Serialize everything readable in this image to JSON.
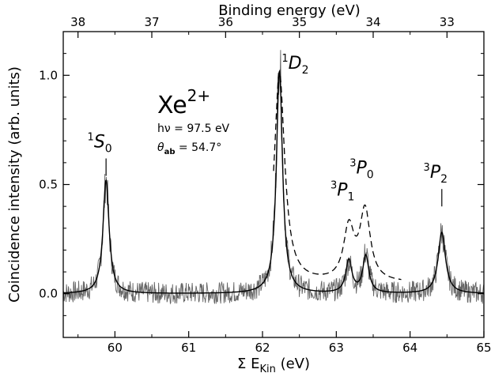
{
  "chart_data": {
    "type": "line",
    "xlabel": "Σ E",
    "xlabel_sub": "Kin",
    "xlabel_unit": " (eV)",
    "ylabel": "Coincidence intensity (arb. units)",
    "top_axis_label": "Binding energy (eV)",
    "xlim": [
      59.3,
      65.0
    ],
    "ylim": [
      -0.2,
      1.2
    ],
    "x_ticks": [
      "60",
      "61",
      "62",
      "63",
      "64",
      "65"
    ],
    "y_ticks": [
      "0.0",
      "0.5",
      "1.0"
    ],
    "top_ticks": [
      "38",
      "37",
      "36",
      "35",
      "34",
      "33"
    ],
    "grid": false,
    "series": [
      {
        "style": "noisy-gray",
        "peaks": [
          [
            59.88,
            0.52,
            0.05
          ],
          [
            62.23,
            1.08,
            0.05
          ],
          [
            63.17,
            0.14,
            0.05
          ],
          [
            63.4,
            0.18,
            0.05
          ],
          [
            64.43,
            0.28,
            0.06
          ]
        ],
        "noise_amplitude": 0.05
      },
      {
        "style": "solid-black-fit",
        "peaks": [
          [
            59.88,
            0.52,
            0.05
          ],
          [
            62.23,
            1.02,
            0.05
          ],
          [
            63.17,
            0.15,
            0.05
          ],
          [
            63.4,
            0.17,
            0.05
          ],
          [
            64.43,
            0.28,
            0.06
          ]
        ]
      },
      {
        "style": "dashed",
        "x_start": 62.15,
        "x_end": 63.88,
        "baseline": 0.05,
        "peaks": [
          [
            62.23,
            0.96,
            0.085
          ],
          [
            63.17,
            0.24,
            0.085
          ],
          [
            63.39,
            0.32,
            0.085
          ]
        ]
      }
    ],
    "annotations": {
      "species": "Xe",
      "charge": "2+",
      "photon_energy": "hν = 97.5 eV",
      "angle_sym": "θ",
      "angle_sub": "ab",
      "angle_value": " = 54.7°",
      "peak_labels": [
        {
          "x": 59.88,
          "y": 0.67,
          "sup": "1",
          "letter": "S",
          "sub": "0"
        },
        {
          "x": 62.53,
          "y": 1.03,
          "sup": "1",
          "letter": "D",
          "sub": "2"
        },
        {
          "x": 63.17,
          "y": 0.45,
          "sup": "3",
          "letter": "P",
          "sub": "1"
        },
        {
          "x": 63.43,
          "y": 0.55,
          "sup": "3",
          "letter": "P",
          "sub": "0"
        },
        {
          "x": 64.43,
          "y": 0.53,
          "sup": "3",
          "letter": "P",
          "sub": "2"
        }
      ]
    }
  }
}
